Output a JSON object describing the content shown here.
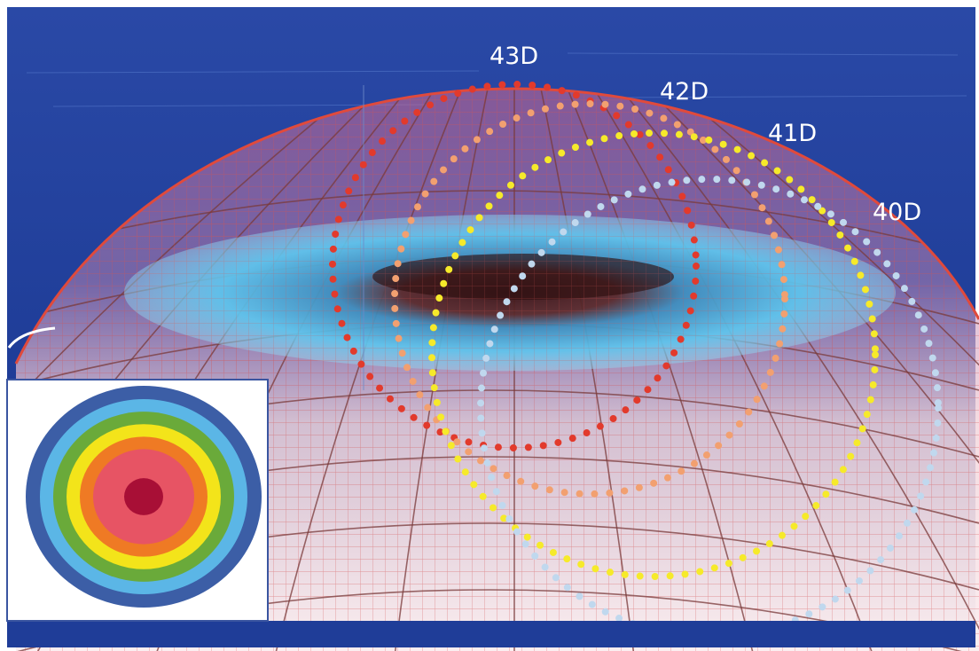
{
  "labels": {
    "d43": "43D",
    "d42": "42D",
    "d41": "41D",
    "d40": "40D"
  },
  "colors": {
    "background": "#1f3f9a",
    "dome_edge": "#e04a3c",
    "mesh_line": "#c24848",
    "tear_film": "#5cc2ea",
    "ring_43": "#e23a2c",
    "ring_42": "#f2a070",
    "ring_41": "#f6ea2a",
    "ring_40": "#c0d8ee"
  },
  "inset_map": {
    "rings": [
      {
        "name": "outer-blue",
        "color": "#3c5ea6"
      },
      {
        "name": "light-blue",
        "color": "#5bb6e6"
      },
      {
        "name": "green",
        "color": "#6aaa3a"
      },
      {
        "name": "yellow",
        "color": "#f3e41a"
      },
      {
        "name": "orange",
        "color": "#ef7a24"
      },
      {
        "name": "pink",
        "color": "#e75464"
      },
      {
        "name": "center",
        "color": "#a80f36"
      }
    ]
  }
}
